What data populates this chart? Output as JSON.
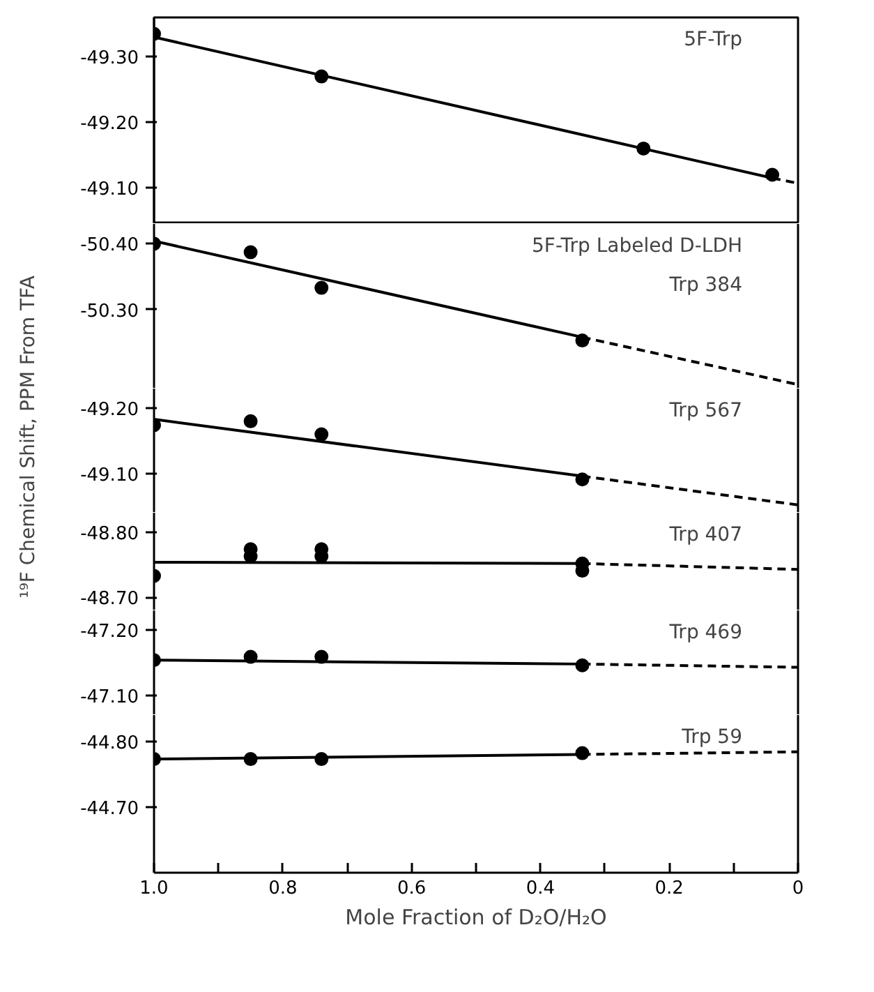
{
  "chart_data": [
    {
      "type": "scatter",
      "tick_labels": "y",
      "xlim": [
        1.0,
        0
      ],
      "ylim": [
        -49.045,
        -49.36
      ],
      "yticks": [
        {
          "value": -49.3,
          "label": "-49.30"
        },
        {
          "value": -49.2,
          "label": "-49.20"
        },
        {
          "value": -49.1,
          "label": "-49.10"
        }
      ],
      "annotations": [
        "5F-Trp"
      ],
      "series": [
        {
          "x": [
            1.0,
            0.74,
            0.24,
            0.04
          ],
          "values": [
            -49.335,
            -49.27,
            -49.16,
            -49.12
          ],
          "color": "#000000",
          "marker": "circle"
        },
        {
          "type": "line",
          "x": [
            1.0,
            0.04
          ],
          "values": [
            -49.33,
            -49.115
          ],
          "color": "#000000",
          "line_style": "solid"
        },
        {
          "type": "line",
          "x": [
            0.04,
            0
          ],
          "values": [
            -49.115,
            -49.107
          ],
          "color": "#000000",
          "line_style": "dashed"
        }
      ]
    },
    {
      "type": "scatter",
      "tick_labels": "y",
      "xlim": [
        1.0,
        0
      ],
      "ylim": [
        -50.18,
        -50.43
      ],
      "yticks": [
        {
          "value": -50.4,
          "label": "-50.40"
        },
        {
          "value": -50.3,
          "label": "-50.30"
        }
      ],
      "annotations": [
        "5F-Trp Labeled D-LDH",
        "Trp 384"
      ],
      "series": [
        {
          "x": [
            1.0,
            0.85,
            0.74,
            0.335
          ],
          "values": [
            -50.4,
            -50.387,
            -50.333,
            -50.253
          ],
          "color": "#000000",
          "marker": "circle"
        },
        {
          "type": "line",
          "x": [
            1.0,
            0.335
          ],
          "values": [
            -50.404,
            -50.258
          ],
          "color": "#000000",
          "line_style": "solid"
        },
        {
          "type": "line",
          "x": [
            0.335,
            0
          ],
          "values": [
            -50.258,
            -50.186
          ],
          "color": "#000000",
          "line_style": "dashed"
        }
      ]
    },
    {
      "type": "scatter",
      "tick_labels": "y",
      "xlim": [
        1.0,
        0
      ],
      "ylim": [
        -49.04,
        -49.23
      ],
      "yticks": [
        {
          "value": -49.2,
          "label": "-49.20"
        },
        {
          "value": -49.1,
          "label": "-49.10"
        }
      ],
      "annotations": [
        "Trp 567"
      ],
      "series": [
        {
          "x": [
            1.0,
            0.85,
            0.74,
            0.335
          ],
          "values": [
            -49.174,
            -49.18,
            -49.16,
            -49.091
          ],
          "color": "#000000",
          "marker": "circle"
        },
        {
          "type": "line",
          "x": [
            1.0,
            0.335
          ],
          "values": [
            -49.183,
            -49.096
          ],
          "color": "#000000",
          "line_style": "solid"
        },
        {
          "type": "line",
          "x": [
            0.335,
            0
          ],
          "values": [
            -49.096,
            -49.052
          ],
          "color": "#000000",
          "line_style": "dashed"
        }
      ]
    },
    {
      "type": "scatter",
      "tick_labels": "y",
      "xlim": [
        1.0,
        0
      ],
      "ylim": [
        -48.68,
        -48.83
      ],
      "yticks": [
        {
          "value": -48.8,
          "label": "-48.80"
        },
        {
          "value": -48.7,
          "label": "-48.70"
        }
      ],
      "ylabel": "¹⁹F Chemical Shift, PPM From TFA",
      "annotations": [
        "Trp 407"
      ],
      "series": [
        {
          "x": [
            1.0,
            0.85,
            0.85,
            0.74,
            0.74,
            0.335,
            0.335
          ],
          "values": [
            -48.733,
            -48.774,
            -48.763,
            -48.774,
            -48.763,
            -48.752,
            -48.741
          ],
          "color": "#000000",
          "marker": "circle"
        },
        {
          "type": "line",
          "x": [
            1.0,
            0.335
          ],
          "values": [
            -48.754,
            -48.752
          ],
          "color": "#000000",
          "line_style": "solid"
        },
        {
          "type": "line",
          "x": [
            0.335,
            0
          ],
          "values": [
            -48.752,
            -48.743
          ],
          "color": "#000000",
          "line_style": "dashed"
        }
      ]
    },
    {
      "type": "scatter",
      "tick_labels": "y",
      "xlim": [
        1.0,
        0
      ],
      "ylim": [
        -47.07,
        -47.23
      ],
      "yticks": [
        {
          "value": -47.2,
          "label": "-47.20"
        },
        {
          "value": -47.1,
          "label": "-47.10"
        }
      ],
      "annotations": [
        "Trp 469"
      ],
      "series": [
        {
          "x": [
            1.0,
            0.85,
            0.74,
            0.335
          ],
          "values": [
            -47.154,
            -47.159,
            -47.159,
            -47.146
          ],
          "color": "#000000",
          "marker": "circle"
        },
        {
          "type": "line",
          "x": [
            1.0,
            0.335
          ],
          "values": [
            -47.154,
            -47.148
          ],
          "color": "#000000",
          "line_style": "solid"
        },
        {
          "type": "line",
          "x": [
            0.335,
            0
          ],
          "values": [
            -47.148,
            -47.143
          ],
          "color": "#000000",
          "line_style": "dashed"
        }
      ]
    },
    {
      "type": "scatter",
      "xlim": [
        1.0,
        0
      ],
      "ylim": [
        -44.6,
        -44.84
      ],
      "xlabel": "Mole Fraction of D₂O/H₂O",
      "xticks": [
        {
          "value": 1.0,
          "label": "1.0"
        },
        {
          "value": 0.9,
          "label": null
        },
        0.8,
        {
          "value": 0.7,
          "label": null
        },
        0.6,
        {
          "value": 0.5,
          "label": null
        },
        0.4,
        {
          "value": 0.3,
          "label": null
        },
        0.2,
        {
          "value": 0.1,
          "label": null
        },
        0
      ],
      "yticks": [
        {
          "value": -44.8,
          "label": "-44.80"
        },
        {
          "value": -44.7,
          "label": "-44.70"
        }
      ],
      "annotations": [
        "Trp 59"
      ],
      "series": [
        {
          "x": [
            1.0,
            0.85,
            0.74,
            0.335
          ],
          "values": [
            -44.773,
            -44.773,
            -44.773,
            -44.782
          ],
          "color": "#000000",
          "marker": "circle"
        },
        {
          "type": "line",
          "x": [
            1.0,
            0.335
          ],
          "values": [
            -44.773,
            -44.78
          ],
          "color": "#000000",
          "line_style": "solid"
        },
        {
          "type": "line",
          "x": [
            0.335,
            0
          ],
          "values": [
            -44.78,
            -44.784
          ],
          "color": "#000000",
          "line_style": "dashed"
        }
      ]
    }
  ]
}
